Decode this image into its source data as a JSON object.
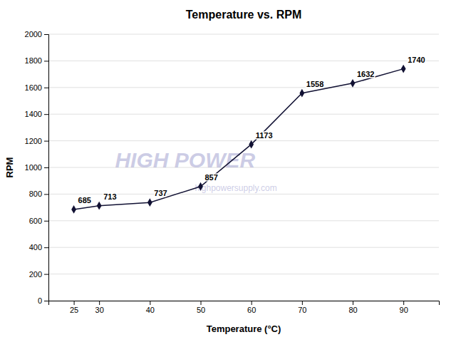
{
  "chart_data": {
    "type": "line",
    "title": "Temperature vs. RPM",
    "x_label": "Temperature (°C)",
    "y_label": "RPM",
    "x": [
      25,
      30,
      40,
      50,
      60,
      70,
      80,
      90
    ],
    "values": [
      685,
      713,
      737,
      857,
      1173,
      1558,
      1632,
      1740
    ],
    "xlim": [
      20,
      97
    ],
    "xticks": [
      25,
      30,
      40,
      50,
      60,
      70,
      80,
      90
    ],
    "ylim": [
      0,
      2000
    ],
    "yticks": [
      0,
      200,
      400,
      600,
      800,
      1000,
      1200,
      1400,
      1600,
      1800,
      2000
    ],
    "color": "#111133",
    "marker": "diamond",
    "grid": "y",
    "data_labels": true,
    "annotations": [
      "HIGH POWER",
      "highpowersupply.com"
    ]
  }
}
